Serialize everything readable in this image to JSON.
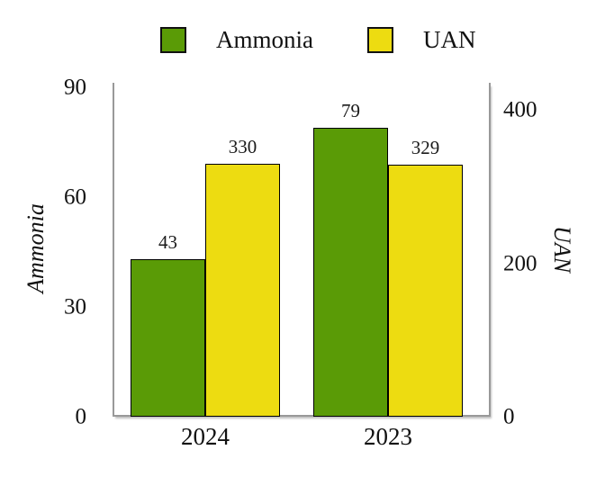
{
  "legend": {
    "items": [
      {
        "label": "Ammonia",
        "color": "#5a9b06"
      },
      {
        "label": "UAN",
        "color": "#eddc11"
      }
    ]
  },
  "chart_data": {
    "type": "bar",
    "categories": [
      "2024",
      "2023"
    ],
    "series": [
      {
        "name": "Ammonia",
        "axis": "left",
        "color": "#5a9b06",
        "values": [
          43,
          79
        ]
      },
      {
        "name": "UAN",
        "axis": "right",
        "color": "#eddc11",
        "values": [
          330,
          329
        ]
      }
    ],
    "left_axis": {
      "label": "Ammonia",
      "ticks": [
        0,
        30,
        60,
        90
      ],
      "ylim": [
        0,
        90
      ]
    },
    "right_axis": {
      "label": "UAN",
      "ticks": [
        0,
        200,
        400
      ],
      "ylim": [
        0,
        400
      ]
    },
    "data_labels": [
      [
        43,
        79
      ],
      [
        330,
        329
      ]
    ],
    "legend_position": "top",
    "grid": false,
    "bar_border_color": "#000000",
    "axis_line_color": "#999999"
  }
}
